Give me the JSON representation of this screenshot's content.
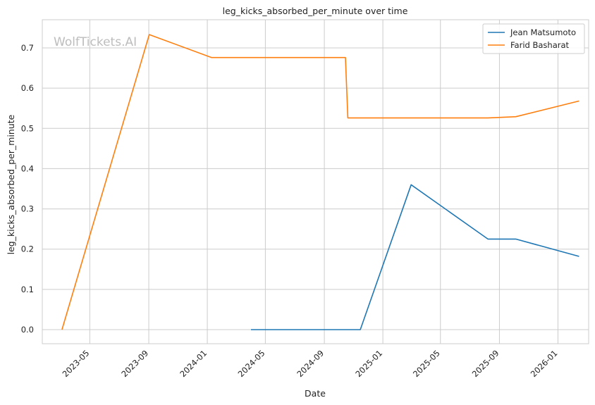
{
  "chart_data": {
    "type": "line",
    "title": "leg_kicks_absorbed_per_minute over time",
    "xlabel": "Date",
    "ylabel": "leg_kicks_absorbed_per_minute",
    "watermark": "WolfTickets.AI",
    "x_ticks": [
      "2023-05",
      "2023-09",
      "2024-01",
      "2024-05",
      "2024-09",
      "2025-01",
      "2025-05",
      "2025-09",
      "2026-01"
    ],
    "y_ticks": [
      "0.0",
      "0.1",
      "0.2",
      "0.3",
      "0.4",
      "0.5",
      "0.6",
      "0.7"
    ],
    "xlim": [
      "2023-01-22",
      "2026-03-06"
    ],
    "ylim": [
      -0.035,
      0.77
    ],
    "grid": true,
    "legend_position": "top-right",
    "series": [
      {
        "name": "Jean Matsumoto",
        "color": "#1f77b4",
        "points": [
          {
            "x": "2024-04-01",
            "y": 0.0
          },
          {
            "x": "2024-11-15",
            "y": 0.0
          },
          {
            "x": "2025-03-01",
            "y": 0.36
          },
          {
            "x": "2025-08-08",
            "y": 0.225
          },
          {
            "x": "2025-10-05",
            "y": 0.225
          },
          {
            "x": "2026-02-14",
            "y": 0.182
          }
        ]
      },
      {
        "name": "Farid Basharat",
        "color": "#ff7f0e",
        "points": [
          {
            "x": "2023-03-04",
            "y": 0.0
          },
          {
            "x": "2023-09-02",
            "y": 0.733
          },
          {
            "x": "2024-01-10",
            "y": 0.676
          },
          {
            "x": "2024-10-15",
            "y": 0.676
          },
          {
            "x": "2024-10-20",
            "y": 0.526
          },
          {
            "x": "2025-08-08",
            "y": 0.526
          },
          {
            "x": "2025-10-05",
            "y": 0.529
          },
          {
            "x": "2026-02-14",
            "y": 0.568
          }
        ]
      }
    ]
  }
}
